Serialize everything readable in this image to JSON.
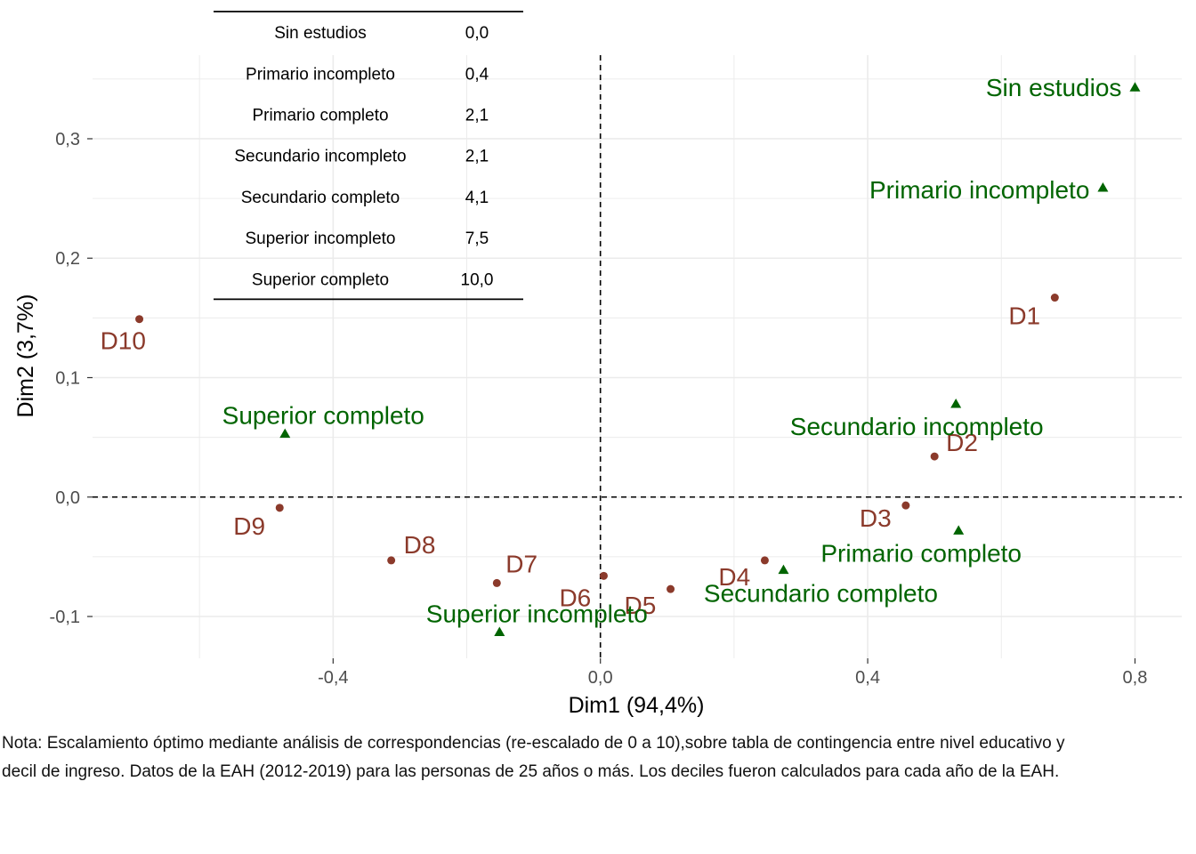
{
  "chart_data": {
    "type": "scatter",
    "xlabel": "Dim1 (94,4%)",
    "ylabel": "Dim2 (3,7%)",
    "xlim": [
      -0.76,
      0.87
    ],
    "ylim": [
      -0.135,
      0.37
    ],
    "x_ticks": [
      -0.4,
      0.0,
      0.4,
      0.8
    ],
    "x_tick_labels": [
      "-0,4",
      "0,0",
      "0,4",
      "0,8"
    ],
    "y_ticks": [
      -0.1,
      0.0,
      0.1,
      0.2,
      0.3
    ],
    "y_tick_labels": [
      "-0,1",
      "0,0",
      "0,1",
      "0,2",
      "0,3"
    ],
    "grid": true,
    "reference_lines": {
      "x": 0,
      "y": 0,
      "style": "dashed"
    },
    "series": [
      {
        "marker": "circle",
        "color": "#8b3a2b",
        "points": [
          {
            "label": "D1",
            "x": 0.68,
            "y": 0.167
          },
          {
            "label": "D2",
            "x": 0.5,
            "y": 0.034
          },
          {
            "label": "D3",
            "x": 0.457,
            "y": -0.007
          },
          {
            "label": "D4",
            "x": 0.246,
            "y": -0.053
          },
          {
            "label": "D5",
            "x": 0.105,
            "y": -0.077
          },
          {
            "label": "D6",
            "x": 0.005,
            "y": -0.066
          },
          {
            "label": "D7",
            "x": -0.155,
            "y": -0.072
          },
          {
            "label": "D8",
            "x": -0.313,
            "y": -0.053
          },
          {
            "label": "D9",
            "x": -0.48,
            "y": -0.009
          },
          {
            "label": "D10",
            "x": -0.69,
            "y": 0.149
          }
        ]
      },
      {
        "marker": "triangle",
        "color": "#006400",
        "points": [
          {
            "label": "Sin estudios",
            "x": 0.8,
            "y": 0.343
          },
          {
            "label": "Primario incompleto",
            "x": 0.752,
            "y": 0.259
          },
          {
            "label": "Secundario incompleto",
            "x": 0.532,
            "y": 0.078
          },
          {
            "label": "Primario completo",
            "x": 0.536,
            "y": -0.028
          },
          {
            "label": "Secundario completo",
            "x": 0.274,
            "y": -0.061
          },
          {
            "label": "Superior incompleto",
            "x": -0.151,
            "y": -0.113
          },
          {
            "label": "Superior completo",
            "x": -0.472,
            "y": 0.053
          }
        ]
      }
    ],
    "inset_table": {
      "rows": [
        {
          "label": "Sin estudios",
          "value": "0,0"
        },
        {
          "label": "Primario incompleto",
          "value": "0,4"
        },
        {
          "label": "Primario completo",
          "value": "2,1"
        },
        {
          "label": "Secundario incompleto",
          "value": "2,1"
        },
        {
          "label": "Secundario completo",
          "value": "4,1"
        },
        {
          "label": "Superior incompleto",
          "value": "7,5"
        },
        {
          "label": "Superior completo",
          "value": "10,0"
        }
      ]
    }
  },
  "note": {
    "line1": "Nota: Escalamiento óptimo mediante análisis de correspondencias (re-escalado de 0 a 10),sobre tabla de contingencia entre nivel educativo y",
    "line2": "decil de ingreso. Datos de la EAH (2012-2019) para las personas de 25 años o más. Los deciles fueron calculados para cada año de la EAH."
  }
}
